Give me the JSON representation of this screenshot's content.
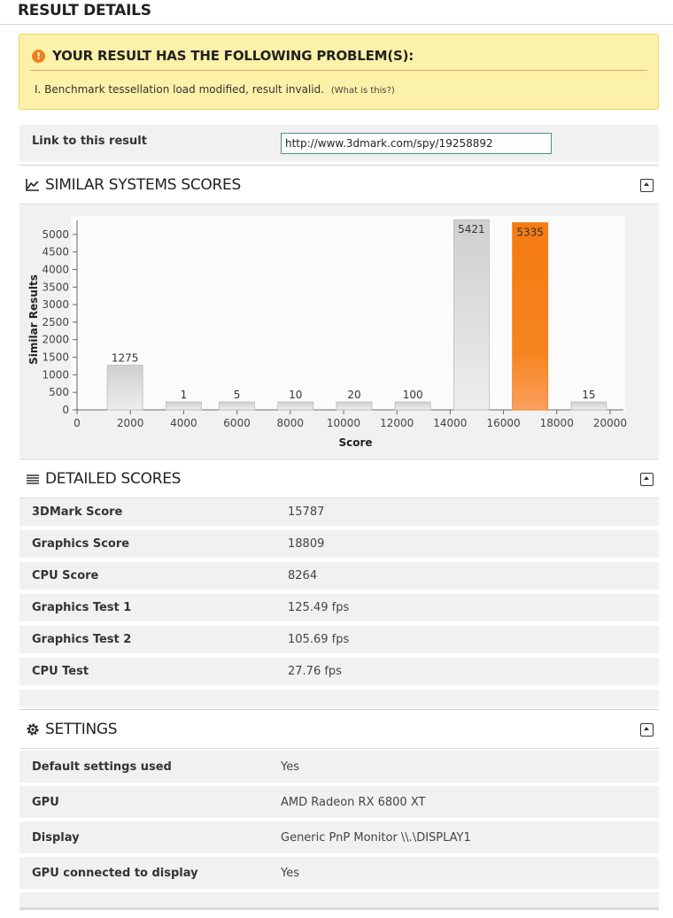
{
  "page": {
    "title": "RESULT DETAILS"
  },
  "warning": {
    "heading": "YOUR RESULT HAS THE FOLLOWING PROBLEM(S):",
    "message": "I. Benchmark tessellation load modified, result invalid.",
    "help_link": "(What is this?)",
    "icon": "exclamation-icon",
    "color": "#fcf1a8"
  },
  "link": {
    "label": "Link to this result",
    "value": "http://www.3dmark.com/spy/19258892"
  },
  "similar": {
    "title": "SIMILAR SYSTEMS SCORES",
    "icon": "line-chart-icon"
  },
  "chart_data": {
    "type": "bar",
    "title": "",
    "xlabel": "Score",
    "ylabel": "Similar Results",
    "xlim": [
      0,
      20500
    ],
    "ylim": [
      0,
      5500
    ],
    "x_ticks": [
      "0",
      "2000",
      "4000",
      "6000",
      "8000",
      "10000",
      "12000",
      "14000",
      "16000",
      "18000",
      "20000"
    ],
    "y_ticks": [
      "0",
      "500",
      "1000",
      "1500",
      "2000",
      "2500",
      "3000",
      "3500",
      "4000",
      "4500",
      "5000"
    ],
    "bars": [
      {
        "x": 1800,
        "value": 1275,
        "label": "1275",
        "highlight": false
      },
      {
        "x": 4000,
        "value": 1,
        "label": "1",
        "highlight": false
      },
      {
        "x": 6000,
        "value": 5,
        "label": "5",
        "highlight": false
      },
      {
        "x": 8200,
        "value": 10,
        "label": "10",
        "highlight": false
      },
      {
        "x": 10400,
        "value": 20,
        "label": "20",
        "highlight": false
      },
      {
        "x": 12600,
        "value": 100,
        "label": "100",
        "highlight": false
      },
      {
        "x": 14800,
        "value": 5421,
        "label": "5421",
        "highlight": false
      },
      {
        "x": 17000,
        "value": 5335,
        "label": "5335",
        "highlight": true
      },
      {
        "x": 19200,
        "value": 15,
        "label": "15",
        "highlight": false
      }
    ],
    "bar_color": "#d6d6d6",
    "highlight_color": "#f7821e",
    "grid": false
  },
  "detailed": {
    "title": "DETAILED SCORES",
    "icon": "list-icon",
    "rows": [
      {
        "label": "3DMark Score",
        "value": "15787"
      },
      {
        "label": "Graphics Score",
        "value": "18809"
      },
      {
        "label": "CPU Score",
        "value": "8264"
      },
      {
        "label": "Graphics Test 1",
        "value": "125.49 fps"
      },
      {
        "label": "Graphics Test 2",
        "value": "105.69 fps"
      },
      {
        "label": "CPU Test",
        "value": "27.76 fps"
      }
    ]
  },
  "settings": {
    "title": "SETTINGS",
    "icon": "gear-icon",
    "rows": [
      {
        "label": "Default settings used",
        "value": "Yes"
      },
      {
        "label": "GPU",
        "value": "AMD Radeon RX 6800 XT"
      },
      {
        "label": "Display",
        "value": "Generic PnP Monitor \\\\.\\DISPLAY1"
      },
      {
        "label": "GPU connected to display",
        "value": "Yes"
      }
    ]
  }
}
